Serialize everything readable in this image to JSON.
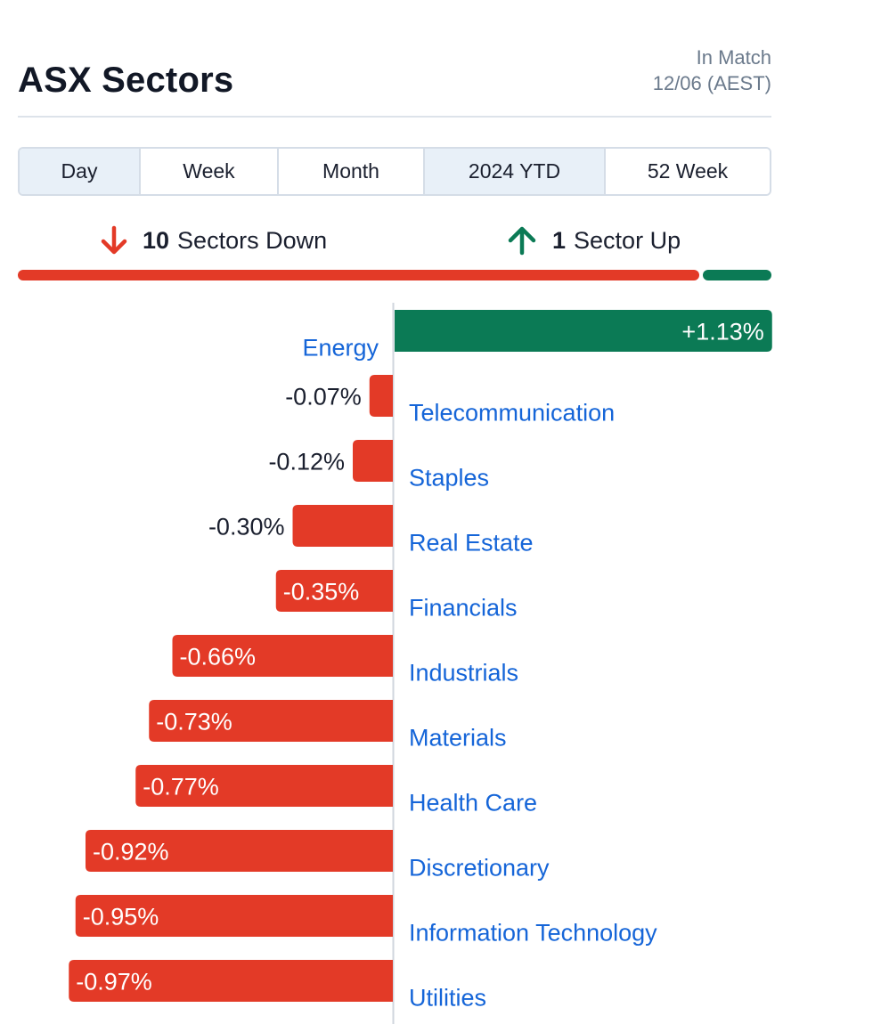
{
  "header": {
    "title": "ASX Sectors",
    "status_line1": "In Match",
    "status_line2": "12/06 (AEST)"
  },
  "tabs": [
    {
      "label": "Day",
      "shaded": true
    },
    {
      "label": "Week",
      "shaded": false
    },
    {
      "label": "Month",
      "shaded": false
    },
    {
      "label": "2024 YTD",
      "shaded": true
    },
    {
      "label": "52 Week",
      "shaded": false
    }
  ],
  "summary": {
    "down_count": "10",
    "down_label": "Sectors Down",
    "up_count": "1",
    "up_label": "Sector Up"
  },
  "colors": {
    "negative": "#e33a27",
    "positive": "#0b7a55",
    "link": "#1565d8",
    "text": "#1a1f2e",
    "axis": "#d0d6de"
  },
  "chart_data": {
    "type": "bar",
    "orientation": "horizontal",
    "categories": [
      "Energy",
      "Telecommunication",
      "Staples",
      "Real Estate",
      "Financials",
      "Industrials",
      "Materials",
      "Health Care",
      "Discretionary",
      "Information Technology",
      "Utilities"
    ],
    "values": [
      1.13,
      -0.07,
      -0.12,
      -0.3,
      -0.35,
      -0.66,
      -0.73,
      -0.77,
      -0.92,
      -0.95,
      -0.97
    ],
    "value_labels": [
      "+1.13%",
      "-0.07%",
      "-0.12%",
      "-0.30%",
      "-0.35%",
      "-0.66%",
      "-0.73%",
      "-0.77%",
      "-0.92%",
      "-0.95%",
      "-0.97%"
    ],
    "unit": "%",
    "xlim": [
      -1.0,
      1.3
    ]
  }
}
